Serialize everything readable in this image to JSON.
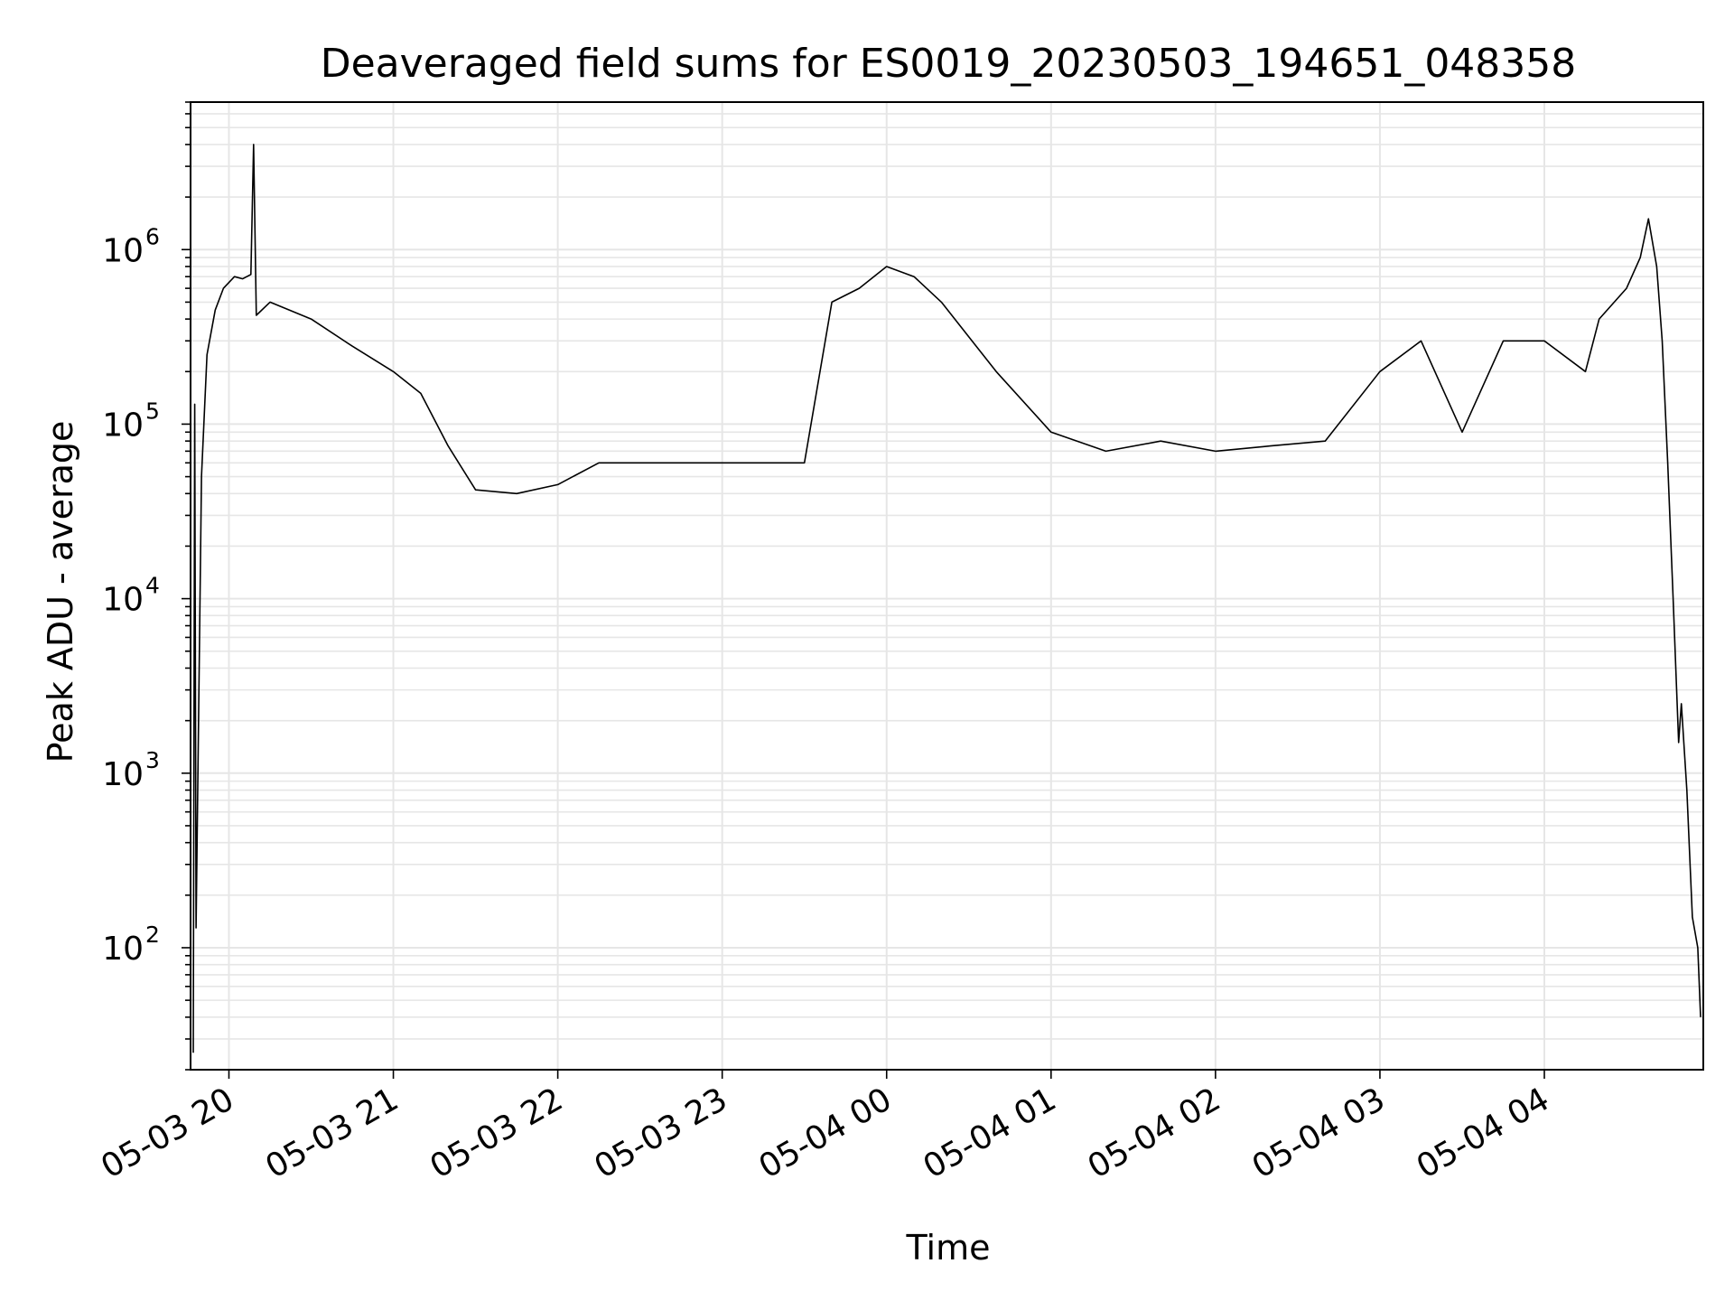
{
  "chart_data": {
    "type": "line",
    "title": "Deaveraged field sums for ES0019_20230503_194651_048358",
    "xlabel": "Time",
    "ylabel": "Peak ADU - average",
    "yscale": "log",
    "ylim": [
      20,
      7000000
    ],
    "xlim": [
      "2023-05-03 19:46",
      "2023-05-04 04:58"
    ],
    "grid": true,
    "line_color": "#000000",
    "grid_color": "#e6e6e6",
    "x_ticks": [
      {
        "value": "2023-05-03 20:00",
        "label": "05-03 20"
      },
      {
        "value": "2023-05-03 21:00",
        "label": "05-03 21"
      },
      {
        "value": "2023-05-03 22:00",
        "label": "05-03 22"
      },
      {
        "value": "2023-05-03 23:00",
        "label": "05-03 23"
      },
      {
        "value": "2023-05-04 00:00",
        "label": "05-04 00"
      },
      {
        "value": "2023-05-04 01:00",
        "label": "05-04 01"
      },
      {
        "value": "2023-05-04 02:00",
        "label": "05-04 02"
      },
      {
        "value": "2023-05-04 03:00",
        "label": "05-04 03"
      },
      {
        "value": "2023-05-04 04:00",
        "label": "05-04 04"
      }
    ],
    "y_ticks": [
      {
        "value": 100,
        "base": "10",
        "exp": "2"
      },
      {
        "value": 1000,
        "base": "10",
        "exp": "3"
      },
      {
        "value": 10000,
        "base": "10",
        "exp": "4"
      },
      {
        "value": 100000,
        "base": "10",
        "exp": "5"
      },
      {
        "value": 1000000,
        "base": "10",
        "exp": "6"
      }
    ],
    "series": [
      {
        "points": [
          [
            "2023-05-03 19:47",
            25
          ],
          [
            "2023-05-03 19:47:30",
            130000
          ],
          [
            "2023-05-03 19:48",
            130
          ],
          [
            "2023-05-03 19:50",
            50000
          ],
          [
            "2023-05-03 19:52",
            250000
          ],
          [
            "2023-05-03 19:55",
            450000
          ],
          [
            "2023-05-03 19:58",
            600000
          ],
          [
            "2023-05-03 20:02",
            700000
          ],
          [
            "2023-05-03 20:05",
            680000
          ],
          [
            "2023-05-03 20:08",
            720000
          ],
          [
            "2023-05-03 20:09",
            4000000
          ],
          [
            "2023-05-03 20:10",
            420000
          ],
          [
            "2023-05-03 20:15",
            500000
          ],
          [
            "2023-05-03 20:30",
            400000
          ],
          [
            "2023-05-03 20:45",
            280000
          ],
          [
            "2023-05-03 21:00",
            200000
          ],
          [
            "2023-05-03 21:10",
            150000
          ],
          [
            "2023-05-03 21:20",
            75000
          ],
          [
            "2023-05-03 21:30",
            42000
          ],
          [
            "2023-05-03 21:45",
            40000
          ],
          [
            "2023-05-03 22:00",
            45000
          ],
          [
            "2023-05-03 22:15",
            60000
          ],
          [
            "2023-05-03 22:30",
            60000
          ],
          [
            "2023-05-03 22:45",
            60000
          ],
          [
            "2023-05-03 23:00",
            60000
          ],
          [
            "2023-05-03 23:15",
            60000
          ],
          [
            "2023-05-03 23:30",
            60000
          ],
          [
            "2023-05-03 23:40",
            500000
          ],
          [
            "2023-05-03 23:50",
            600000
          ],
          [
            "2023-05-04 00:00",
            800000
          ],
          [
            "2023-05-04 00:10",
            700000
          ],
          [
            "2023-05-04 00:20",
            500000
          ],
          [
            "2023-05-04 00:40",
            200000
          ],
          [
            "2023-05-04 01:00",
            90000
          ],
          [
            "2023-05-04 01:20",
            70000
          ],
          [
            "2023-05-04 01:40",
            80000
          ],
          [
            "2023-05-04 02:00",
            70000
          ],
          [
            "2023-05-04 02:20",
            75000
          ],
          [
            "2023-05-04 02:40",
            80000
          ],
          [
            "2023-05-04 03:00",
            200000
          ],
          [
            "2023-05-04 03:15",
            300000
          ],
          [
            "2023-05-04 03:30",
            90000
          ],
          [
            "2023-05-04 03:45",
            300000
          ],
          [
            "2023-05-04 04:00",
            300000
          ],
          [
            "2023-05-04 04:15",
            200000
          ],
          [
            "2023-05-04 04:20",
            400000
          ],
          [
            "2023-05-04 04:30",
            600000
          ],
          [
            "2023-05-04 04:35",
            900000
          ],
          [
            "2023-05-04 04:38",
            1500000
          ],
          [
            "2023-05-04 04:41",
            800000
          ],
          [
            "2023-05-04 04:43",
            300000
          ],
          [
            "2023-05-04 04:45",
            60000
          ],
          [
            "2023-05-04 04:47",
            10000
          ],
          [
            "2023-05-04 04:49",
            1500
          ],
          [
            "2023-05-04 04:50",
            2500
          ],
          [
            "2023-05-04 04:52",
            800
          ],
          [
            "2023-05-04 04:54",
            150
          ],
          [
            "2023-05-04 04:56",
            100
          ],
          [
            "2023-05-04 04:57",
            40
          ]
        ]
      }
    ]
  }
}
